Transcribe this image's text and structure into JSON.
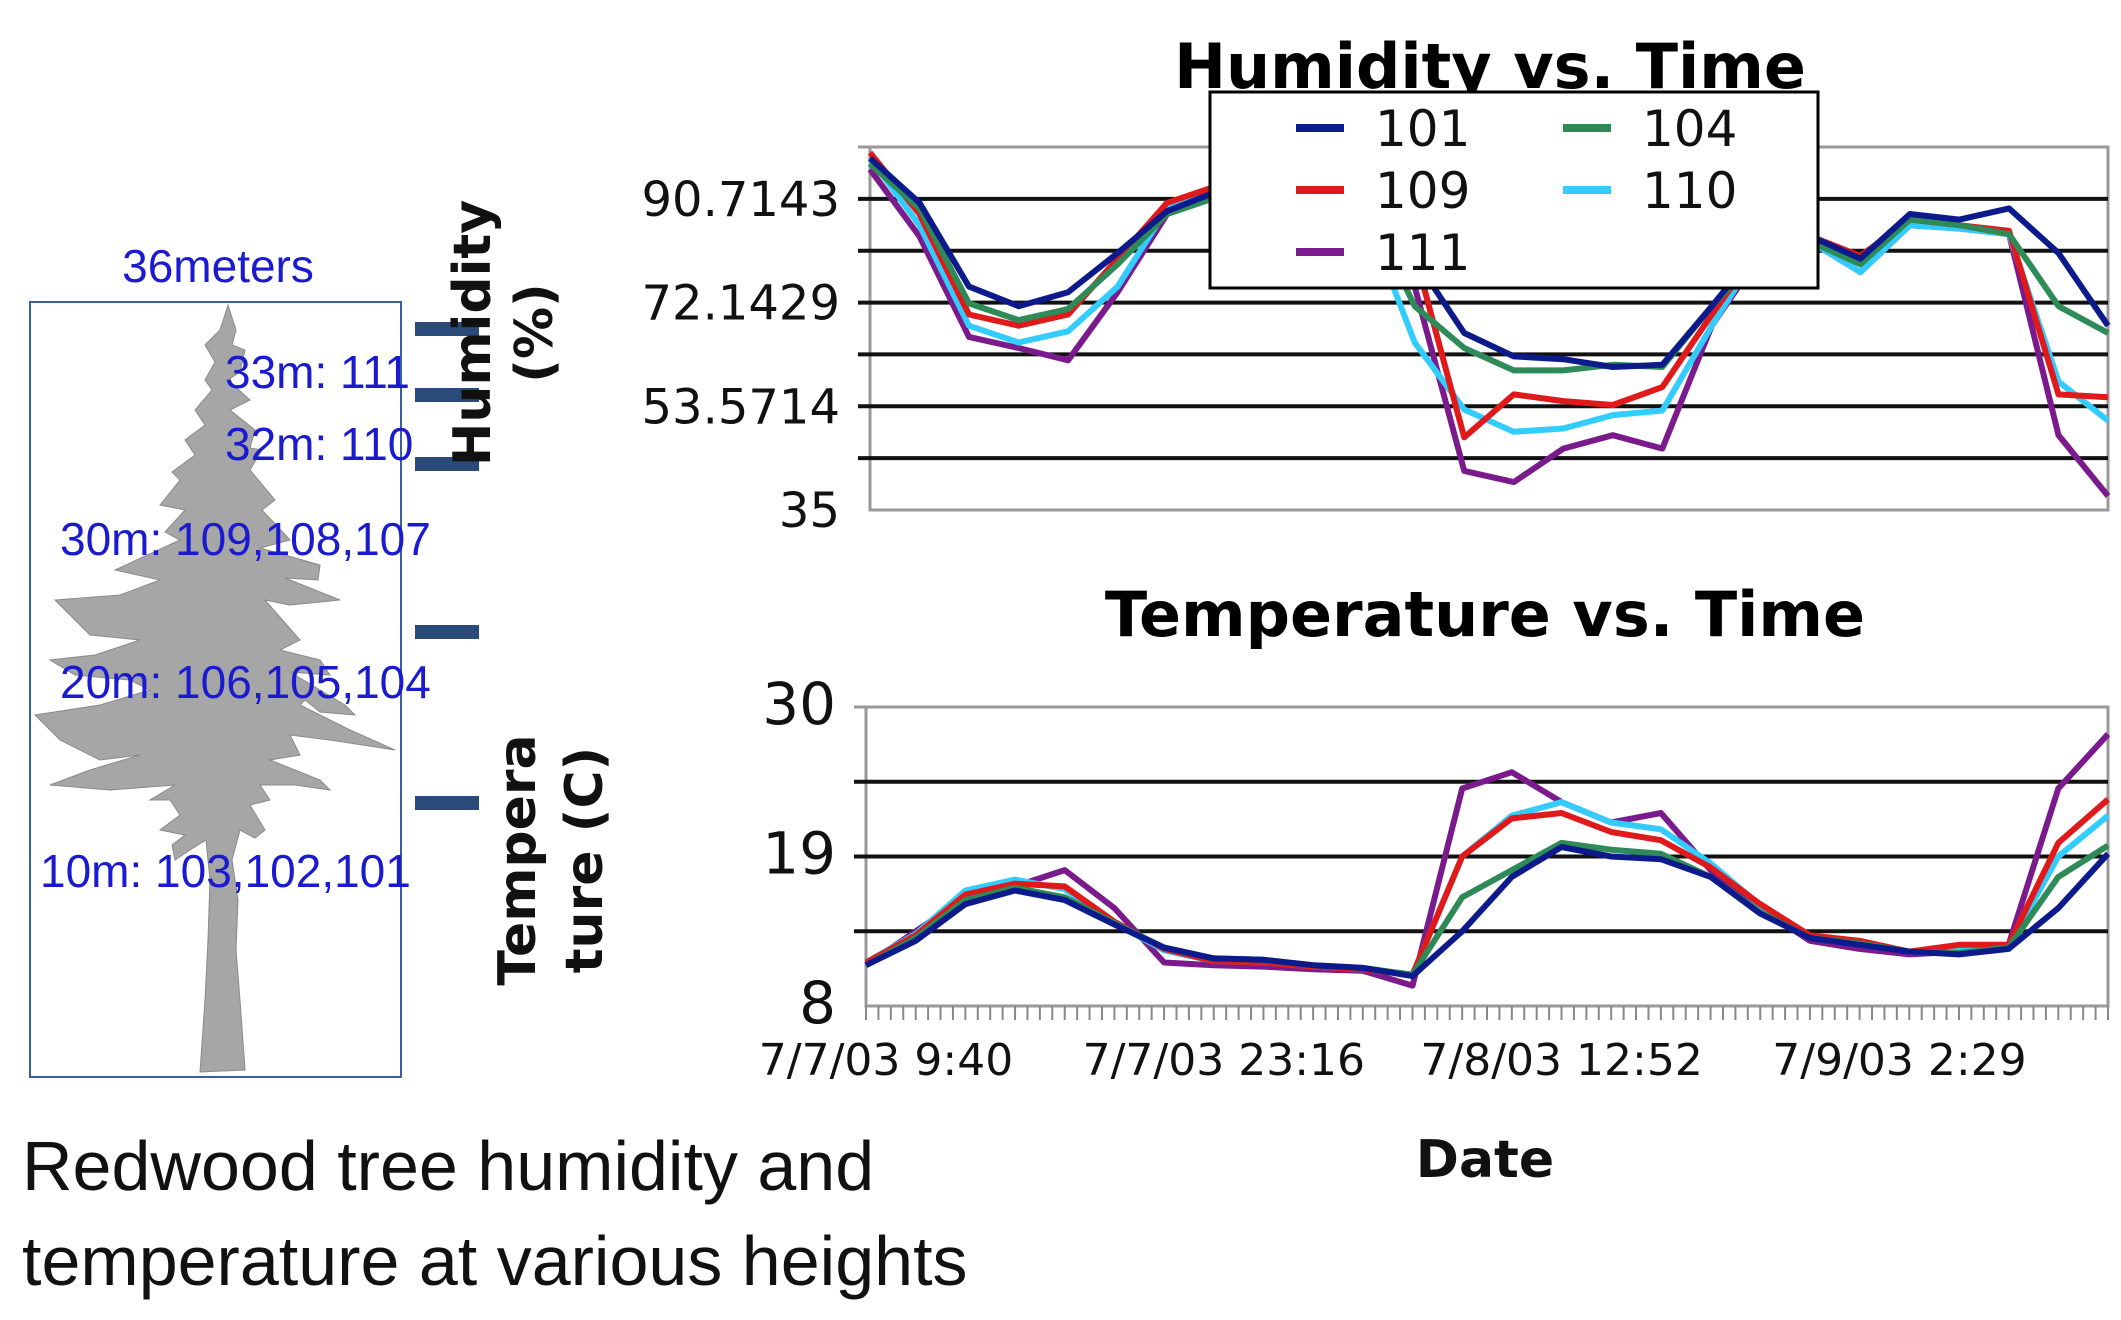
{
  "caption": {
    "line1": "Redwood tree humidity and",
    "line2": "temperature at various heights"
  },
  "tree": {
    "height_label": "36meters",
    "sensor_labels": [
      "33m: 111",
      "32m: 110",
      "30m: 109,108,107",
      "20m: 106,105,104",
      "10m: 103,102,101"
    ],
    "colors": {
      "tree": "#a6a6a6",
      "box": "#3a5fa0",
      "label": "#1a1ad0",
      "marker": "#2a4a7a"
    }
  },
  "legend": [
    {
      "name": "101",
      "color": "#0d1a8c"
    },
    {
      "name": "104",
      "color": "#2e8b57"
    },
    {
      "name": "109",
      "color": "#e01a1a"
    },
    {
      "name": "110",
      "color": "#33ccff"
    },
    {
      "name": "111",
      "color": "#7a1a8c"
    }
  ],
  "chart_data": [
    {
      "type": "line",
      "title": "Humidity vs. Time",
      "ylabel_lines": [
        "Humidity",
        "(%)"
      ],
      "xlabel": "",
      "ylim": [
        35,
        100
      ],
      "ytick_labels": [
        "90.7143",
        "72.1429",
        "53.5714",
        "35"
      ],
      "ytick_values": [
        90.7143,
        72.1429,
        53.5714,
        35
      ],
      "gridlines": [
        44.2857,
        53.5714,
        62.8571,
        72.1429,
        81.4286,
        90.7143,
        100
      ],
      "x_unit": "hours since 7/7/03 9:40",
      "x": [
        0,
        2,
        4,
        6,
        8,
        10,
        12,
        14,
        16,
        18,
        20,
        22,
        24,
        26,
        28,
        30,
        32,
        34,
        36,
        38,
        40,
        42,
        44,
        46,
        48,
        50
      ],
      "series": [
        {
          "name": "101",
          "values": [
            98,
            90,
            75,
            71.5,
            74,
            81,
            88.5,
            92,
            93,
            93,
            92,
            80,
            66.7,
            62.5,
            62,
            60.6,
            61,
            71.5,
            82.5,
            84,
            80,
            88,
            87,
            89,
            81,
            68
          ]
        },
        {
          "name": "104",
          "values": [
            97,
            89,
            72,
            69,
            71,
            79,
            88,
            91,
            92,
            92,
            90,
            71.5,
            64,
            60,
            60,
            61,
            60.6,
            71.5,
            81,
            83,
            79,
            87,
            86,
            84.4,
            71.5,
            66.7
          ]
        },
        {
          "name": "109",
          "values": [
            99,
            88,
            70,
            68,
            70,
            80,
            90,
            93,
            93,
            92,
            88,
            81,
            48,
            55.7,
            54.5,
            53.8,
            57,
            70,
            82.5,
            84,
            80.5,
            87,
            86,
            85,
            55.7,
            55.2
          ]
        },
        {
          "name": "110",
          "values": [
            98,
            86,
            68,
            65,
            67,
            75,
            89,
            92,
            92,
            91,
            88,
            65,
            53,
            49,
            49.6,
            52,
            52.8,
            68,
            82,
            83,
            77.6,
            86,
            85.4,
            84.4,
            58,
            51
          ]
        },
        {
          "name": "111",
          "values": [
            96,
            84,
            66,
            64,
            61.8,
            74,
            88,
            92,
            92,
            90,
            85,
            75,
            42,
            40,
            46,
            48.4,
            46,
            68,
            81,
            83,
            77.6,
            86,
            85.4,
            84.4,
            48.4,
            37.5
          ]
        }
      ]
    },
    {
      "type": "line",
      "title": "Temperature vs. Time",
      "ylabel_lines": [
        "Tempera",
        "ture (C)"
      ],
      "xlabel": "Date",
      "ylim": [
        8,
        30
      ],
      "ytick_labels": [
        "30",
        "19",
        "8"
      ],
      "ytick_values": [
        30,
        19,
        8
      ],
      "gridlines": [
        13.5,
        19,
        24.5,
        30
      ],
      "xtick_labels": [
        "7/7/03 9:40",
        "7/7/03 23:16",
        "7/8/03 12:52",
        "7/9/03 2:29"
      ],
      "xtick_hours": [
        0,
        13.6,
        27.2,
        40.8
      ],
      "x_unit": "hours since 7/7/03 9:40",
      "x": [
        0,
        2,
        4,
        6,
        8,
        10,
        12,
        14,
        16,
        18,
        20,
        22,
        24,
        26,
        28,
        30,
        32,
        34,
        36,
        38,
        40,
        42,
        44,
        46,
        48,
        50
      ],
      "series": [
        {
          "name": "101",
          "values": [
            11,
            12.8,
            15.5,
            16.5,
            15.8,
            14,
            12.3,
            11.5,
            11.4,
            11,
            10.8,
            10.2,
            13.5,
            17.5,
            19.7,
            19,
            18.8,
            17.5,
            14.8,
            13,
            12.5,
            12,
            11.8,
            12.2,
            15.2,
            19.2
          ]
        },
        {
          "name": "104",
          "values": [
            11,
            13,
            15.8,
            16.7,
            16,
            14.1,
            12.3,
            11.5,
            11.4,
            11,
            10.8,
            10.3,
            16,
            18,
            20,
            19.5,
            19.2,
            17.5,
            14.9,
            13,
            12.6,
            12,
            11.9,
            12.3,
            17.5,
            19.8
          ]
        },
        {
          "name": "109",
          "values": [
            11.2,
            13.2,
            16.2,
            17,
            16.8,
            14.2,
            12.2,
            11.3,
            11.2,
            10.9,
            10.7,
            10.3,
            19,
            21.8,
            22.2,
            20.8,
            20.2,
            18.2,
            15.5,
            13.2,
            12.8,
            12,
            12.5,
            12.5,
            20,
            23.2
          ]
        },
        {
          "name": "110",
          "values": [
            11.2,
            13.3,
            16.5,
            17.3,
            16.6,
            14.1,
            12.1,
            11.3,
            11.2,
            10.9,
            10.7,
            10.3,
            19,
            22,
            23,
            21.5,
            21,
            18.5,
            15.4,
            13.1,
            12.7,
            12,
            12.3,
            12.4,
            19,
            22
          ]
        },
        {
          "name": "111",
          "values": [
            11,
            13.5,
            16,
            16.8,
            18,
            15.2,
            11.2,
            11,
            10.9,
            10.7,
            10.6,
            9.5,
            24,
            25.2,
            23,
            21.5,
            22.2,
            18,
            15.2,
            12.8,
            12.2,
            11.8,
            12,
            12.5,
            24,
            28
          ]
        }
      ]
    }
  ]
}
